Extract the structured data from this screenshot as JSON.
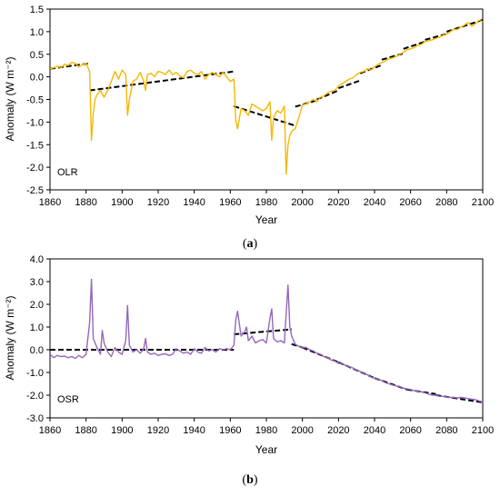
{
  "chart_data": [
    {
      "type": "line",
      "panel_label": "(a)",
      "panel_letter": "a",
      "inset_label": "OLR",
      "xlabel": "Year",
      "ylabel": "Anomaly (W m⁻²)",
      "xlim": [
        1860,
        2100
      ],
      "ylim": [
        -2.5,
        1.5
      ],
      "xticks": [
        1860,
        1880,
        1900,
        1920,
        1940,
        1960,
        1980,
        2000,
        2020,
        2040,
        2060,
        2080,
        2100
      ],
      "xtick_labels": [
        "1860",
        "1880",
        "1900",
        "1920",
        "1940",
        "1960",
        "1980",
        "2000",
        "2020",
        "2040",
        "2060",
        "2080",
        "2100"
      ],
      "yticks": [
        -2.5,
        -2.0,
        -1.5,
        -1.0,
        -0.5,
        0.0,
        0.5,
        1.0,
        1.5
      ],
      "ytick_labels": [
        "-2.5",
        "-2.0",
        "-1.5",
        "-1.0",
        "-0.5",
        "0.0",
        "0.5",
        "1.0",
        "1.5"
      ],
      "grid": false,
      "legend": "none",
      "line_color": "#F5B800",
      "trend_color": "#000000",
      "series": [
        {
          "x": [
            1860,
            1862,
            1864,
            1866,
            1868,
            1870,
            1872,
            1874,
            1876,
            1878,
            1880,
            1882,
            1883,
            1884,
            1885,
            1886,
            1888,
            1890,
            1892,
            1894,
            1896,
            1898,
            1900,
            1902,
            1903,
            1904,
            1906,
            1908,
            1910,
            1912,
            1913,
            1914,
            1916,
            1918,
            1920,
            1922,
            1924,
            1926,
            1928,
            1930,
            1932,
            1934,
            1936,
            1938,
            1940,
            1942,
            1944,
            1946,
            1948,
            1950,
            1952,
            1954,
            1956,
            1958,
            1960,
            1962,
            1963,
            1964,
            1966,
            1968,
            1970,
            1972,
            1974,
            1976,
            1978,
            1980,
            1982,
            1983,
            1984,
            1986,
            1988,
            1990,
            1991,
            1992,
            1993,
            1994,
            1996,
            1998,
            2000,
            2002,
            2004,
            2006,
            2008,
            2010,
            2012,
            2014,
            2016,
            2018,
            2020,
            2022,
            2024,
            2026,
            2028,
            2030,
            2032,
            2034,
            2036,
            2038,
            2040,
            2042,
            2044,
            2046,
            2048,
            2050,
            2052,
            2054,
            2056,
            2058,
            2060,
            2062,
            2064,
            2066,
            2068,
            2070,
            2072,
            2074,
            2076,
            2078,
            2080,
            2082,
            2084,
            2086,
            2088,
            2090,
            2092,
            2094,
            2096,
            2098,
            2100
          ],
          "y": [
            0.18,
            0.2,
            0.24,
            0.2,
            0.28,
            0.25,
            0.32,
            0.3,
            0.22,
            0.27,
            0.3,
            0.12,
            -1.4,
            -0.8,
            -0.5,
            -0.4,
            -0.3,
            -0.45,
            -0.3,
            -0.1,
            0.12,
            -0.05,
            0.15,
            0.05,
            -0.85,
            -0.5,
            -0.1,
            -0.05,
            0.1,
            -0.1,
            -0.3,
            0.05,
            0.08,
            0.0,
            0.12,
            0.1,
            0.05,
            0.15,
            0.05,
            0.1,
            0.02,
            -0.02,
            0.12,
            0.15,
            0.08,
            0.05,
            0.12,
            -0.05,
            0.05,
            0.1,
            0.05,
            0.0,
            0.1,
            0.0,
            -0.1,
            -0.05,
            -0.95,
            -1.15,
            -0.7,
            -0.75,
            -0.85,
            -0.6,
            -0.65,
            -0.7,
            -0.75,
            -0.7,
            -0.55,
            -1.4,
            -0.9,
            -0.75,
            -0.8,
            -0.65,
            -2.15,
            -1.5,
            -1.3,
            -1.2,
            -1.15,
            -0.9,
            -0.62,
            -0.6,
            -0.55,
            -0.5,
            -0.55,
            -0.45,
            -0.42,
            -0.35,
            -0.32,
            -0.3,
            -0.2,
            -0.15,
            -0.1,
            -0.05,
            -0.02,
            0.05,
            0.1,
            0.12,
            0.18,
            0.15,
            0.22,
            0.28,
            0.32,
            0.35,
            0.4,
            0.42,
            0.45,
            0.5,
            0.55,
            0.6,
            0.62,
            0.65,
            0.7,
            0.72,
            0.78,
            0.8,
            0.82,
            0.85,
            0.88,
            0.92,
            0.95,
            1.0,
            1.05,
            1.05,
            1.1,
            1.15,
            1.2,
            1.12,
            1.18,
            1.25,
            1.22
          ]
        }
      ],
      "trends": [
        {
          "x": [
            1860,
            1882
          ],
          "y": [
            0.18,
            0.3
          ]
        },
        {
          "x": [
            1882,
            1962
          ],
          "y": [
            -0.3,
            0.12
          ]
        },
        {
          "x": [
            1962,
            1996
          ],
          "y": [
            -0.65,
            -1.08
          ]
        },
        {
          "x": [
            1996,
            2008
          ],
          "y": [
            -0.66,
            -0.52
          ]
        },
        {
          "x": [
            2008,
            2020
          ],
          "y": [
            -0.5,
            -0.3
          ]
        },
        {
          "x": [
            2020,
            2032
          ],
          "y": [
            -0.25,
            -0.08
          ]
        },
        {
          "x": [
            2032,
            2044
          ],
          "y": [
            0.08,
            0.26
          ]
        },
        {
          "x": [
            2044,
            2056
          ],
          "y": [
            0.38,
            0.52
          ]
        },
        {
          "x": [
            2056,
            2068
          ],
          "y": [
            0.62,
            0.78
          ]
        },
        {
          "x": [
            2068,
            2080
          ],
          "y": [
            0.82,
            0.95
          ]
        },
        {
          "x": [
            2080,
            2100
          ],
          "y": [
            1.0,
            1.26
          ]
        }
      ]
    },
    {
      "type": "line",
      "panel_label": "(b)",
      "panel_letter": "b",
      "inset_label": "OSR",
      "xlabel": "Year",
      "ylabel": "Anomaly (W m⁻²)",
      "xlim": [
        1860,
        2100
      ],
      "ylim": [
        -3.0,
        4.0
      ],
      "xticks": [
        1860,
        1880,
        1900,
        1920,
        1940,
        1960,
        1980,
        2000,
        2020,
        2040,
        2060,
        2080,
        2100
      ],
      "xtick_labels": [
        "1860",
        "1880",
        "1900",
        "1920",
        "1940",
        "1960",
        "1980",
        "2000",
        "2020",
        "2040",
        "2060",
        "2080",
        "2100"
      ],
      "yticks": [
        -3.0,
        -2.0,
        -1.0,
        0.0,
        1.0,
        2.0,
        3.0,
        4.0
      ],
      "ytick_labels": [
        "-3.0",
        "-2.0",
        "-1.0",
        "0.0",
        "1.0",
        "2.0",
        "3.0",
        "4.0"
      ],
      "grid": false,
      "legend": "none",
      "line_color": "#9467BD",
      "trend_color": "#000000",
      "series": [
        {
          "x": [
            1860,
            1862,
            1864,
            1866,
            1868,
            1870,
            1872,
            1874,
            1876,
            1878,
            1880,
            1882,
            1883,
            1884,
            1886,
            1888,
            1889,
            1890,
            1892,
            1894,
            1896,
            1898,
            1900,
            1902,
            1903,
            1904,
            1906,
            1908,
            1910,
            1912,
            1913,
            1914,
            1916,
            1918,
            1920,
            1922,
            1924,
            1926,
            1928,
            1930,
            1932,
            1934,
            1936,
            1938,
            1940,
            1942,
            1944,
            1946,
            1948,
            1950,
            1952,
            1954,
            1956,
            1958,
            1960,
            1962,
            1963,
            1964,
            1966,
            1968,
            1969,
            1970,
            1972,
            1974,
            1976,
            1978,
            1980,
            1982,
            1983,
            1984,
            1986,
            1988,
            1990,
            1991,
            1992,
            1993,
            1994,
            1996,
            1998,
            2000,
            2002,
            2004,
            2006,
            2008,
            2010,
            2012,
            2014,
            2016,
            2018,
            2020,
            2022,
            2024,
            2026,
            2028,
            2030,
            2032,
            2034,
            2036,
            2038,
            2040,
            2042,
            2044,
            2046,
            2048,
            2050,
            2052,
            2054,
            2056,
            2058,
            2060,
            2062,
            2064,
            2066,
            2068,
            2070,
            2072,
            2074,
            2076,
            2078,
            2080,
            2082,
            2084,
            2086,
            2088,
            2090,
            2092,
            2094,
            2096,
            2098,
            2100
          ],
          "y": [
            -0.2,
            -0.35,
            -0.25,
            -0.3,
            -0.28,
            -0.35,
            -0.3,
            -0.38,
            -0.25,
            -0.35,
            -0.2,
            1.2,
            3.1,
            0.5,
            0.1,
            -0.2,
            0.85,
            0.3,
            -0.1,
            -0.3,
            0.1,
            -0.1,
            -0.2,
            0.4,
            1.95,
            0.2,
            -0.1,
            0.0,
            -0.15,
            0.05,
            0.5,
            -0.1,
            -0.2,
            -0.15,
            -0.25,
            -0.2,
            -0.18,
            -0.25,
            -0.2,
            0.05,
            -0.05,
            -0.15,
            -0.1,
            -0.2,
            0.05,
            -0.1,
            -0.15,
            0.1,
            -0.05,
            0.0,
            -0.1,
            0.05,
            0.0,
            0.05,
            0.0,
            0.2,
            1.3,
            1.7,
            0.6,
            0.8,
            1.0,
            0.4,
            0.6,
            0.3,
            0.4,
            0.45,
            0.3,
            1.4,
            1.8,
            0.5,
            0.35,
            0.4,
            0.3,
            1.6,
            2.85,
            1.0,
            0.6,
            0.25,
            0.15,
            0.1,
            0.1,
            0.0,
            -0.05,
            -0.15,
            -0.2,
            -0.3,
            -0.35,
            -0.45,
            -0.5,
            -0.6,
            -0.6,
            -0.7,
            -0.75,
            -0.8,
            -0.9,
            -0.95,
            -1.05,
            -1.1,
            -1.2,
            -1.25,
            -1.3,
            -1.35,
            -1.45,
            -1.5,
            -1.55,
            -1.6,
            -1.62,
            -1.7,
            -1.72,
            -1.75,
            -1.8,
            -1.82,
            -1.85,
            -1.9,
            -1.95,
            -2.0,
            -2.0,
            -2.05,
            -2.05,
            -2.08,
            -2.1,
            -2.1,
            -2.12,
            -2.1,
            -2.12,
            -2.15,
            -2.18,
            -2.2,
            -2.25,
            -2.3
          ]
        }
      ],
      "trends": [
        {
          "x": [
            1860,
            1962
          ],
          "y": [
            0.0,
            0.0
          ]
        },
        {
          "x": [
            1962,
            1994
          ],
          "y": [
            0.68,
            0.9
          ]
        },
        {
          "x": [
            1994,
            2000
          ],
          "y": [
            0.25,
            0.1
          ]
        },
        {
          "x": [
            2000,
            2020
          ],
          "y": [
            0.1,
            -0.55
          ]
        },
        {
          "x": [
            2020,
            2040
          ],
          "y": [
            -0.55,
            -1.25
          ]
        },
        {
          "x": [
            2040,
            2058
          ],
          "y": [
            -1.25,
            -1.75
          ]
        },
        {
          "x": [
            2058,
            2074
          ],
          "y": [
            -1.75,
            -1.95
          ]
        },
        {
          "x": [
            2074,
            2100
          ],
          "y": [
            -2.0,
            -2.32
          ]
        }
      ]
    }
  ]
}
